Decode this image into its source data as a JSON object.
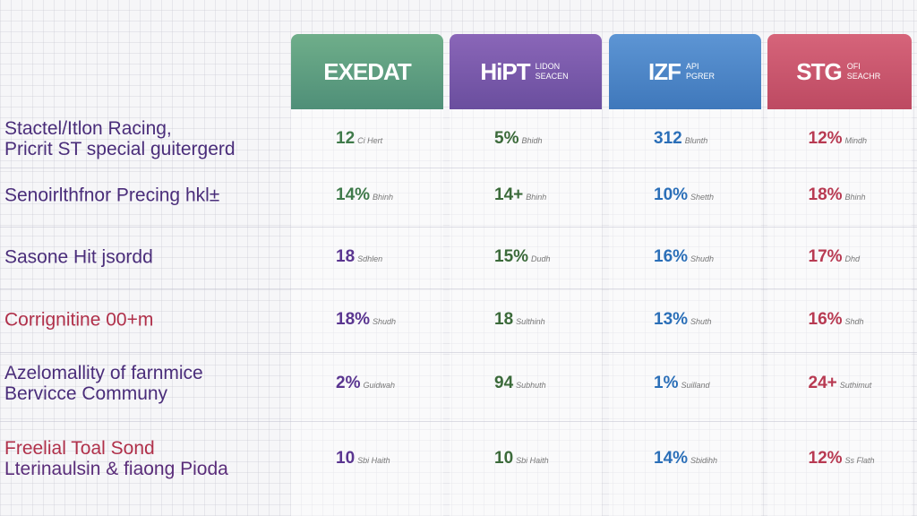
{
  "columns": [
    {
      "title": "EXEDAT"
    },
    {
      "title": "HiPT",
      "subtitle": "LIDON SEACEN"
    },
    {
      "title": "IZF",
      "subtitle": "API PGRER"
    },
    {
      "title": "STG",
      "subtitle": "OFI SEACHR"
    }
  ],
  "rows": [
    {
      "label": [
        "Stactel/Itlon Racing,",
        "Pricrit ST special guitergerd"
      ],
      "cells": [
        {
          "value": "12",
          "note": "Ci Hert"
        },
        {
          "value": "5%",
          "note": "Bhidh"
        },
        {
          "value": "312",
          "note": "Blunth"
        },
        {
          "value": "12%",
          "note": "Mindh"
        }
      ]
    },
    {
      "label": [
        "Senoirlthfnor Precing hkl±"
      ],
      "cells": [
        {
          "value": "14%",
          "note": "Bhinh"
        },
        {
          "value": "14+",
          "note": "Bhinh"
        },
        {
          "value": "10%",
          "note": "Shetth"
        },
        {
          "value": "18%",
          "note": "Bhinh"
        }
      ]
    },
    {
      "label": [
        "Sasone Hit jsordd"
      ],
      "cells": [
        {
          "value": "18",
          "note": "Sdhlen"
        },
        {
          "value": "15%",
          "note": "Dudh"
        },
        {
          "value": "16%",
          "note": "Shudh"
        },
        {
          "value": "17%",
          "note": "Dhd"
        }
      ]
    },
    {
      "label": [
        "Corrignitine 00+m"
      ],
      "cells": [
        {
          "value": "18%",
          "note": "Shudh"
        },
        {
          "value": "18",
          "note": "Sulthinh"
        },
        {
          "value": "13%",
          "note": "Shuth"
        },
        {
          "value": "16%",
          "note": "Shdh"
        }
      ]
    },
    {
      "label": [
        "Azelomallity of farnmice",
        "Bervicce Communy"
      ],
      "cells": [
        {
          "value": "2%",
          "note": "Guidwah"
        },
        {
          "value": "94",
          "note": "Subhuth"
        },
        {
          "value": "1%",
          "note": "Suilland"
        },
        {
          "value": "24+",
          "note": "Suthimut"
        }
      ]
    },
    {
      "label": [
        "Freelial Toal Sond",
        "Lterinaulsin & fiaong Pioda"
      ],
      "cells": [
        {
          "value": "10",
          "note": "Sbi Haith"
        },
        {
          "value": "10",
          "note": "Sbi Haith"
        },
        {
          "value": "14%",
          "note": "Sbidihh"
        },
        {
          "value": "12%",
          "note": "Ss Flath"
        }
      ]
    }
  ]
}
